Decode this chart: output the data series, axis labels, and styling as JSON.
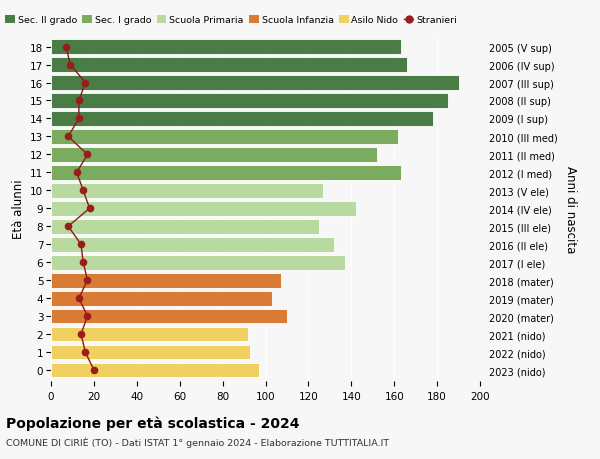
{
  "ages": [
    18,
    17,
    16,
    15,
    14,
    13,
    12,
    11,
    10,
    9,
    8,
    7,
    6,
    5,
    4,
    3,
    2,
    1,
    0
  ],
  "right_labels": [
    "2005 (V sup)",
    "2006 (IV sup)",
    "2007 (III sup)",
    "2008 (II sup)",
    "2009 (I sup)",
    "2010 (III med)",
    "2011 (II med)",
    "2012 (I med)",
    "2013 (V ele)",
    "2014 (IV ele)",
    "2015 (III ele)",
    "2016 (II ele)",
    "2017 (I ele)",
    "2018 (mater)",
    "2019 (mater)",
    "2020 (mater)",
    "2021 (nido)",
    "2022 (nido)",
    "2023 (nido)"
  ],
  "bar_values": [
    163,
    166,
    190,
    185,
    178,
    162,
    152,
    163,
    127,
    142,
    125,
    132,
    137,
    107,
    103,
    110,
    92,
    93,
    97
  ],
  "stranieri_values": [
    7,
    9,
    16,
    13,
    13,
    8,
    17,
    12,
    15,
    18,
    8,
    14,
    15,
    17,
    13,
    17,
    14,
    16,
    20
  ],
  "bar_colors": [
    "#4a7c45",
    "#4a7c45",
    "#4a7c45",
    "#4a7c45",
    "#4a7c45",
    "#7aab5e",
    "#7aab5e",
    "#7aab5e",
    "#b8d9a0",
    "#b8d9a0",
    "#b8d9a0",
    "#b8d9a0",
    "#b8d9a0",
    "#d97b35",
    "#d97b35",
    "#d97b35",
    "#f0d060",
    "#f0d060",
    "#f0d060"
  ],
  "legend_labels": [
    "Sec. II grado",
    "Sec. I grado",
    "Scuola Primaria",
    "Scuola Infanzia",
    "Asilo Nido",
    "Stranieri"
  ],
  "legend_colors_list": [
    "#4a7c45",
    "#7aab5e",
    "#b8d9a0",
    "#d97b35",
    "#f0d060",
    "#9b1c1c"
  ],
  "title": "Popolazione per età scolastica - 2024",
  "subtitle": "COMUNE DI CIRIÈ (TO) - Dati ISTAT 1° gennaio 2024 - Elaborazione TUTTITALIA.IT",
  "ylabel_left": "Età alunni",
  "ylabel_right": "Anni di nascita",
  "xlim": [
    0,
    200
  ],
  "background_color": "#f7f7f7",
  "stranieri_line_color": "#8b1a1a",
  "stranieri_dot_color": "#9b1c1c",
  "grid_color": "#ffffff",
  "xticks": [
    0,
    20,
    40,
    60,
    80,
    100,
    120,
    140,
    160,
    180,
    200
  ]
}
